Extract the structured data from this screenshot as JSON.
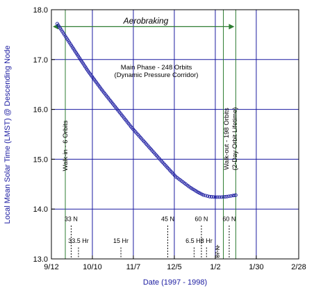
{
  "chart_data": {
    "type": "scatter",
    "xlabel": "Date (1997 - 1998)",
    "ylabel": "Local Mean Solar Time (LMST) @ Descending Node",
    "ylim": [
      13.0,
      18.0
    ],
    "xlim": [
      0,
      169
    ],
    "yticks": [
      {
        "value": 13.0,
        "label": "13.0"
      },
      {
        "value": 14.0,
        "label": "14.0"
      },
      {
        "value": 15.0,
        "label": "15.0"
      },
      {
        "value": 16.0,
        "label": "16.0"
      },
      {
        "value": 17.0,
        "label": "17.0"
      },
      {
        "value": 18.0,
        "label": "18.0"
      }
    ],
    "xticks": [
      {
        "value": 0,
        "label": "9/12"
      },
      {
        "value": 28,
        "label": "10/10"
      },
      {
        "value": 56,
        "label": "11/7"
      },
      {
        "value": 84,
        "label": "12/5"
      },
      {
        "value": 112,
        "label": "1/2"
      },
      {
        "value": 140,
        "label": "1/30"
      },
      {
        "value": 169,
        "label": "2/28"
      }
    ],
    "grid": true,
    "series": [
      {
        "points": [
          [
            4,
            17.72
          ],
          [
            15,
            17.22
          ],
          [
            25,
            16.77
          ],
          [
            35,
            16.37
          ],
          [
            45,
            16.0
          ],
          [
            55,
            15.63
          ],
          [
            65,
            15.3
          ],
          [
            75,
            14.97
          ],
          [
            85,
            14.65
          ],
          [
            95,
            14.43
          ],
          [
            100,
            14.34
          ],
          [
            104,
            14.28
          ],
          [
            108,
            14.25
          ],
          [
            112,
            14.24
          ],
          [
            116,
            14.24
          ],
          [
            120,
            14.25
          ],
          [
            124,
            14.27
          ],
          [
            126,
            14.28
          ]
        ]
      }
    ],
    "phase_lines": [
      {
        "value": 9.5,
        "color": "#2e7d32"
      },
      {
        "value": 117.5,
        "color": "#2e7d32"
      },
      {
        "value": 126,
        "color": "#2e7d32"
      }
    ],
    "aerobraking": {
      "label": "Aerobraking",
      "start": 0,
      "end": 126,
      "y": 17.66
    },
    "phase_labels": {
      "main_line1": "Main Phase - 248 Orbits",
      "main_line2": "(Dynamic Pressure Corridor)",
      "walk_in": "Walk-in - 6 Orbits",
      "walk_out_line1": "Walk-out - 198 Orbits",
      "walk_out_line2": "(2-Day Orbit Lifetime)"
    },
    "markers": [
      {
        "label": "33 N",
        "x": 13.5,
        "label_y": 13.76,
        "line_top": 13.67
      },
      {
        "label": "33.5 Hr",
        "x": 18.5,
        "label_y": 13.32,
        "line_top": 13.23
      },
      {
        "label": "15 Hr",
        "x": 47.5,
        "label_y": 13.32,
        "line_top": 13.23
      },
      {
        "label": "45 N",
        "x": 79.5,
        "label_y": 13.76,
        "line_top": 13.67
      },
      {
        "label": "6.5 Hr",
        "x": 97.5,
        "label_y": 13.32,
        "line_top": 13.23
      },
      {
        "label": "60 N",
        "x": 102.5,
        "label_y": 13.76,
        "line_top": 13.67
      },
      {
        "label": "3 Hr",
        "x": 106,
        "label_y": 13.32,
        "line_top": 13.23
      },
      {
        "label": "87 N",
        "x": 113.5,
        "label_y": 13.14,
        "line_top": 13.28,
        "vertical": true
      },
      {
        "label": "60 N",
        "x": 121.5,
        "label_y": 13.76,
        "line_top": 13.67
      }
    ],
    "colors": {
      "axis": "#000000",
      "grid": "#1a1aa0",
      "phase": "#2e7d32",
      "data": "#1a1aa0",
      "marker": "#000000"
    }
  }
}
